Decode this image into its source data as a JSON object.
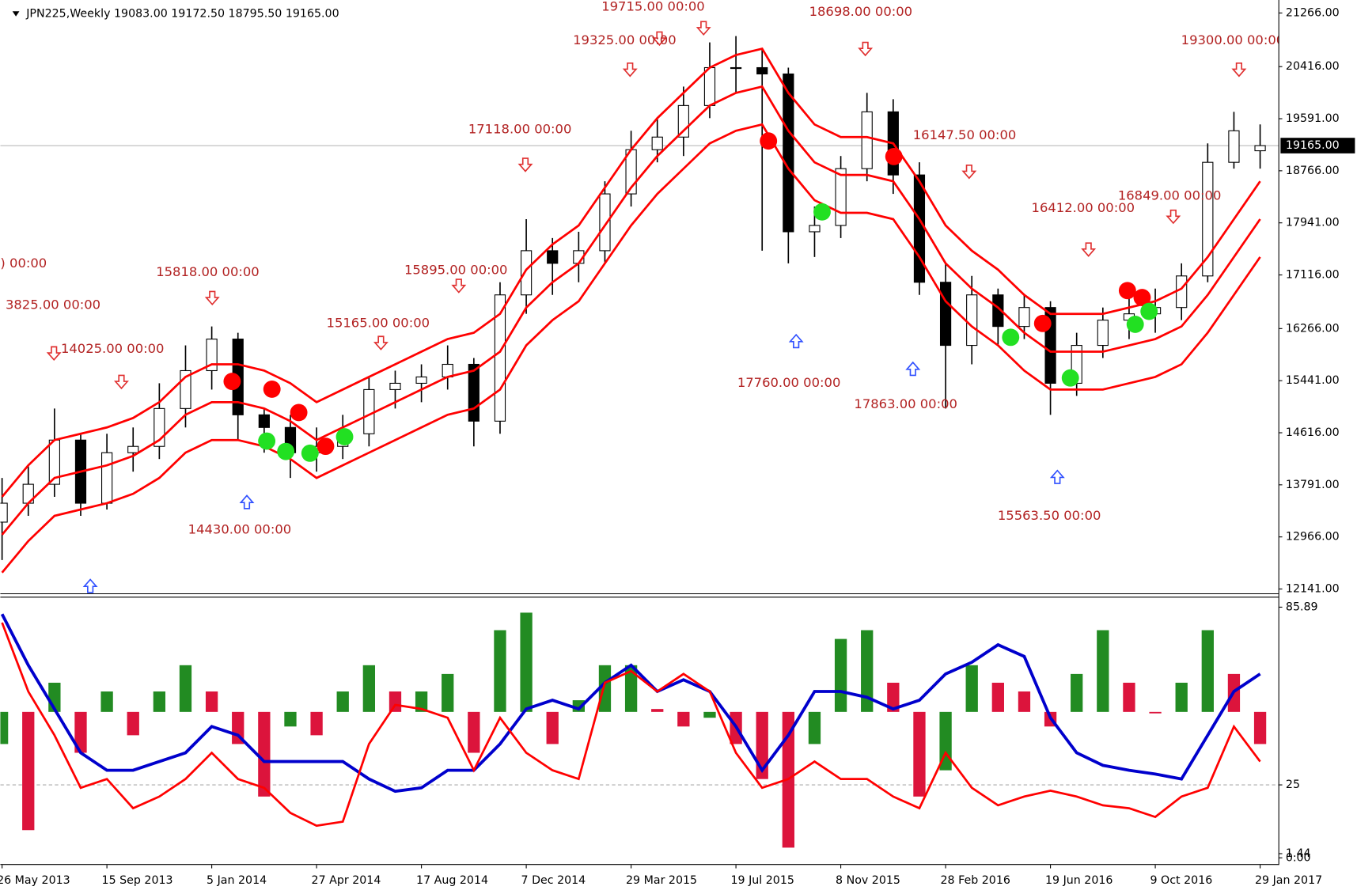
{
  "chart_data": {
    "type": "candlestick",
    "title": "JPN225,Weekly  19083.00 19172.50 18795.50 19165.00",
    "categories": [
      "26 May 2013",
      null,
      null,
      null,
      "15 Sep 2013",
      null,
      null,
      null,
      "5 Jan 2014",
      null,
      null,
      null,
      "27 Apr 2014",
      null,
      null,
      null,
      "17 Aug 2014",
      null,
      null,
      null,
      "7 Dec 2014",
      null,
      null,
      null,
      "29 Mar 2015",
      null,
      null,
      null,
      "19 Jul 2015",
      null,
      null,
      null,
      "8 Nov 2015",
      null,
      null,
      null,
      "28 Feb 2016",
      null,
      null,
      null,
      "19 Jun 2016",
      null,
      null,
      null,
      "9 Oct 2016",
      null,
      null,
      null,
      "29 Jan 2017"
    ],
    "open": [
      13200,
      13500,
      13800,
      14500,
      13500,
      14300,
      14400,
      15000,
      15600,
      16100,
      14900,
      14700,
      14300,
      14400,
      14600,
      15300,
      15400,
      15500,
      15700,
      14800,
      16800,
      17500,
      17300,
      17500,
      18400,
      19100,
      19300,
      19800,
      20400,
      20400,
      20300,
      17800,
      17900,
      18800,
      19700,
      18700,
      17000,
      16000,
      16800,
      16300,
      16600,
      15400,
      16000,
      16400,
      16500,
      16600,
      17100,
      18900,
      19083
    ],
    "high": [
      13900,
      14100,
      15000,
      14600,
      14600,
      14700,
      15400,
      16000,
      16300,
      16200,
      15000,
      14900,
      14700,
      14900,
      15500,
      15600,
      15700,
      16000,
      15800,
      17000,
      18000,
      17700,
      17800,
      18600,
      19400,
      19600,
      20100,
      20800,
      20900,
      20700,
      20400,
      18200,
      19000,
      20000,
      19900,
      18900,
      17300,
      17100,
      16900,
      16800,
      16700,
      16200,
      16600,
      16800,
      16900,
      17300,
      19200,
      19700,
      19500
    ],
    "low": [
      12600,
      13300,
      13600,
      13300,
      13400,
      14000,
      14200,
      14700,
      15300,
      14500,
      14300,
      13900,
      14000,
      14200,
      14400,
      15000,
      15100,
      15300,
      14400,
      14600,
      16500,
      16800,
      17000,
      17300,
      18200,
      18900,
      19000,
      19600,
      20000,
      17500,
      17300,
      17400,
      17700,
      18600,
      18400,
      16800,
      15000,
      15700,
      16000,
      16100,
      14900,
      15200,
      15800,
      16100,
      16200,
      16400,
      17000,
      18800,
      18800
    ],
    "close": [
      13500,
      13800,
      14500,
      13500,
      14300,
      14400,
      15000,
      15600,
      16100,
      14900,
      14700,
      14300,
      14400,
      14600,
      15300,
      15400,
      15500,
      15700,
      14800,
      16800,
      17500,
      17300,
      17500,
      18400,
      19100,
      19300,
      19800,
      20400,
      20400,
      20300,
      17800,
      17900,
      18800,
      19700,
      18700,
      17000,
      16000,
      16800,
      16300,
      16600,
      15400,
      16000,
      16400,
      16500,
      16600,
      17100,
      18900,
      19400,
      19165
    ],
    "series": [
      {
        "color": "#ff0000",
        "values": [
          13600,
          14100,
          14500,
          14600,
          14700,
          14850,
          15100,
          15500,
          15700,
          15700,
          15600,
          15400,
          15100,
          15300,
          15500,
          15700,
          15900,
          16100,
          16200,
          16500,
          17200,
          17600,
          17900,
          18500,
          19100,
          19600,
          20000,
          20400,
          20600,
          20700,
          20000,
          19500,
          19300,
          19300,
          19200,
          18600,
          17900,
          17500,
          17200,
          16800,
          16500,
          16500,
          16500,
          16600,
          16700,
          16900,
          17400,
          18000,
          18600
        ]
      },
      {
        "color": "#ff0000",
        "values": [
          13000,
          13500,
          13900,
          14000,
          14100,
          14250,
          14500,
          14900,
          15100,
          15100,
          15000,
          14800,
          14500,
          14700,
          14900,
          15100,
          15300,
          15500,
          15600,
          15900,
          16600,
          17000,
          17300,
          17900,
          18500,
          19000,
          19400,
          19800,
          20000,
          20100,
          19400,
          18900,
          18700,
          18700,
          18600,
          18000,
          17300,
          16900,
          16600,
          16200,
          15900,
          15900,
          15900,
          16000,
          16100,
          16300,
          16800,
          17400,
          18000
        ]
      },
      {
        "color": "#ff0000",
        "values": [
          12400,
          12900,
          13300,
          13400,
          13500,
          13650,
          13900,
          14300,
          14500,
          14500,
          14400,
          14200,
          13900,
          14100,
          14300,
          14500,
          14700,
          14900,
          15000,
          15300,
          16000,
          16400,
          16700,
          17300,
          17900,
          18400,
          18800,
          19200,
          19400,
          19500,
          18800,
          18300,
          18100,
          18100,
          18000,
          17400,
          16700,
          16300,
          16000,
          15600,
          15300,
          15300,
          15300,
          15400,
          15500,
          15700,
          16200,
          16800,
          17400
        ]
      }
    ],
    "ylim": [
      12141,
      21266
    ],
    "yticks": [
      {
        "value": 21266,
        "label": "21266.00"
      },
      {
        "value": 20416,
        "label": "20416.00"
      },
      {
        "value": 19591,
        "label": "19591.00"
      },
      {
        "value": 18766,
        "label": "18766.00"
      },
      {
        "value": 17941,
        "label": "17941.00"
      },
      {
        "value": 17116,
        "label": "17116.00"
      },
      {
        "value": 16266,
        "label": "16266.00"
      },
      {
        "value": 15441,
        "label": "15441.00"
      },
      {
        "value": 14616,
        "label": "14616.00"
      },
      {
        "value": 13791,
        "label": "13791.00"
      },
      {
        "value": 12966,
        "label": "12966.00"
      },
      {
        "value": 12141,
        "label": "12141.00"
      }
    ],
    "current_price": {
      "value": 19165,
      "label": "19165.00"
    },
    "annotations": [
      "19715.00 00:00",
      "18698.00 00:00",
      "19325.00 00:00",
      "17118.00 00:00",
      "15818.00 00:00",
      ") 00:00",
      "3825.00 00:00",
      "14025.00 00:00",
      "15165.00 00:00",
      "15895.00 00:00",
      "14430.00 00:00",
      "17760.00 00:00",
      "17863.00 00:00",
      "16147.50 00:00",
      "16412.00 00:00",
      "16849.00 00:00",
      "19300.00 00:00",
      "15563.50 00:00"
    ],
    "oscillator": {
      "histogram": [
        39,
        9.5,
        60,
        36,
        57,
        42,
        57,
        66,
        57,
        39,
        21,
        45,
        42,
        57,
        66,
        57,
        57,
        63,
        36,
        78,
        84,
        39,
        54,
        66,
        66,
        51,
        45,
        48,
        39,
        27,
        3.5,
        39,
        75,
        78,
        60,
        21,
        30,
        66,
        60,
        57,
        45,
        63,
        78,
        60,
        49.5,
        60,
        78,
        63,
        39
      ],
      "histogram_base": 50,
      "series": [
        {
          "color": "#0000cc",
          "values": [
            83.5,
            66,
            51,
            36,
            30,
            30,
            33,
            36,
            45,
            42,
            33,
            33,
            33,
            33,
            27,
            22.8,
            24,
            30,
            30,
            39,
            51,
            54,
            51,
            60,
            66,
            57,
            61,
            57,
            45,
            30,
            42,
            57,
            57,
            55,
            51,
            54,
            63,
            67,
            73,
            69,
            48,
            36,
            31.7,
            30,
            28.7,
            27,
            42,
            57,
            63
          ]
        },
        {
          "color": "#ff0000",
          "values": [
            80.6,
            57,
            42,
            24,
            27,
            17,
            21,
            27,
            36,
            27,
            24,
            15.4,
            11,
            12.4,
            39,
            52.4,
            51,
            48,
            30,
            48,
            36,
            30,
            27,
            60,
            64,
            57,
            63,
            57,
            36,
            24,
            27,
            33,
            27,
            27,
            21,
            17,
            36,
            24,
            18,
            21,
            23,
            21,
            18,
            17,
            14,
            21,
            24,
            45,
            33
          ]
        }
      ],
      "ylim": [
        1.44,
        85.89
      ],
      "yticks": [
        85.89,
        25,
        1.44,
        {
          "value": 0,
          "label": "0.00"
        }
      ],
      "level": 25
    }
  }
}
